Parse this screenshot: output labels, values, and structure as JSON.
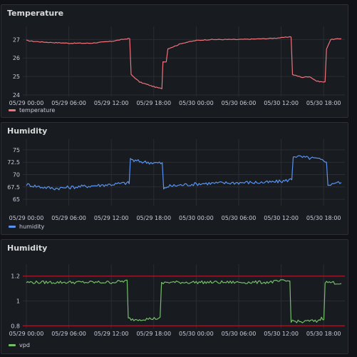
{
  "colors": {
    "background": "#111217",
    "panel": "#181b1f",
    "grid": "#2a2d33",
    "temperature": "#f2727b",
    "humidity": "#5794f2",
    "vpd": "#73bf69",
    "threshold": "#c4162a"
  },
  "panels": [
    {
      "title": "Temperature"
    },
    {
      "title": "Humidity"
    },
    {
      "title": "Humidity"
    }
  ],
  "chart_data": [
    {
      "type": "line",
      "title": "Temperature",
      "x_ticks": [
        "05/29 00:00",
        "05/29 06:00",
        "05/29 12:00",
        "05/29 18:00",
        "05/30 00:00",
        "05/30 06:00",
        "05/30 12:00",
        "05/30 18:00"
      ],
      "xlim": [
        -0.5,
        45
      ],
      "y_ticks": [
        24,
        25,
        26,
        27
      ],
      "ylim": [
        24,
        27.4
      ],
      "grid": true,
      "legend_position": "bottom-left",
      "series": [
        {
          "name": "temperature",
          "color": "#f2727b",
          "x": [
            0,
            1,
            3,
            6,
            9,
            12,
            13.5,
            14.4,
            14.8,
            16,
            18,
            19,
            19.3,
            20,
            22,
            24,
            26,
            30,
            34,
            36.2,
            37.2,
            37.6,
            39,
            40,
            41,
            42,
            42.4,
            43,
            44.5
          ],
          "y": [
            26.95,
            26.9,
            26.85,
            26.8,
            26.8,
            26.9,
            27.0,
            27.05,
            25.1,
            24.7,
            24.45,
            24.35,
            25.8,
            26.5,
            26.8,
            26.95,
            27.0,
            27.0,
            27.05,
            27.1,
            27.15,
            25.1,
            24.95,
            25.0,
            24.75,
            24.7,
            26.5,
            27.0,
            27.05
          ]
        }
      ]
    },
    {
      "type": "line",
      "title": "Humidity",
      "x_ticks": [
        "05/29 00:00",
        "05/29 06:00",
        "05/29 12:00",
        "05/29 18:00",
        "05/30 00:00",
        "05/30 06:00",
        "05/30 12:00",
        "05/30 18:00"
      ],
      "xlim": [
        -0.5,
        45
      ],
      "y_ticks": [
        65,
        67.5,
        70,
        72.5,
        75
      ],
      "ylim": [
        64,
        76
      ],
      "grid": true,
      "legend_position": "bottom-left",
      "series": [
        {
          "name": "humidity",
          "color": "#5794f2",
          "x": [
            0,
            2,
            4,
            6,
            8,
            10,
            12,
            14.2,
            14.7,
            15.2,
            17,
            19,
            19.4,
            19.9,
            22,
            25,
            28,
            31,
            34,
            36.5,
            37.3,
            37.7,
            39,
            41,
            42,
            42.6,
            43.2,
            44.5
          ],
          "y": [
            68.0,
            67.5,
            67.2,
            67.4,
            67.6,
            67.8,
            68.0,
            68.3,
            73.2,
            72.8,
            72.5,
            72.3,
            67.0,
            67.6,
            67.9,
            68.2,
            68.3,
            68.4,
            68.4,
            68.7,
            69.0,
            73.8,
            73.5,
            73.2,
            72.8,
            67.6,
            68.3,
            68.4
          ]
        }
      ]
    },
    {
      "type": "line",
      "title": "Humidity",
      "x_ticks": [
        "05/29 00:00",
        "05/29 06:00",
        "05/29 12:00",
        "05/29 18:00",
        "05/30 00:00",
        "05/30 06:00",
        "05/30 12:00",
        "05/30 18:00"
      ],
      "xlim": [
        -0.5,
        45
      ],
      "y_ticks": [
        0.8,
        1,
        1.2
      ],
      "ylim": [
        0.79,
        1.25
      ],
      "grid": true,
      "thresholds": [
        0.8,
        1.2
      ],
      "legend_position": "bottom-left",
      "series": [
        {
          "name": "vpd",
          "color": "#73bf69",
          "x": [
            0,
            3,
            6,
            9,
            12,
            13.9,
            14.4,
            15,
            17,
            18.7,
            19.1,
            19.8,
            22,
            26,
            30,
            34,
            36.1,
            36.9,
            37.4,
            39,
            40,
            41,
            41.7,
            42.2,
            43,
            44.5
          ],
          "y": [
            1.15,
            1.15,
            1.15,
            1.15,
            1.15,
            1.16,
            0.86,
            0.85,
            0.855,
            0.86,
            1.14,
            1.15,
            1.15,
            1.15,
            1.15,
            1.15,
            1.16,
            1.16,
            0.84,
            0.83,
            0.84,
            0.835,
            0.86,
            1.15,
            1.15,
            1.14
          ]
        }
      ]
    }
  ]
}
